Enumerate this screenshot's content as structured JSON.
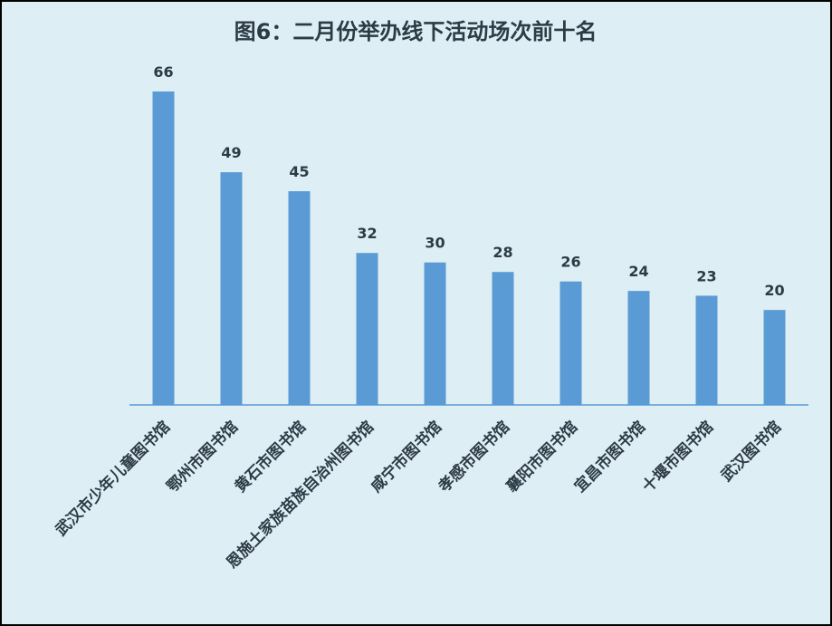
{
  "chart_data": {
    "type": "bar",
    "title": "图6：二月份举办线下活动场次前十名",
    "categories": [
      "武汉市少年儿童图书馆",
      "鄂州市图书馆",
      "黄石市图书馆",
      "恩施土家族苗族自治州图书馆",
      "咸宁市图书馆",
      "孝感市图书馆",
      "襄阳市图书馆",
      "宜昌市图书馆",
      "十堰市图书馆",
      "武汉图书馆"
    ],
    "values": [
      66,
      49,
      45,
      32,
      30,
      28,
      26,
      24,
      23,
      20
    ],
    "color": "#5b9bd5",
    "ylim": [
      0,
      70
    ]
  }
}
